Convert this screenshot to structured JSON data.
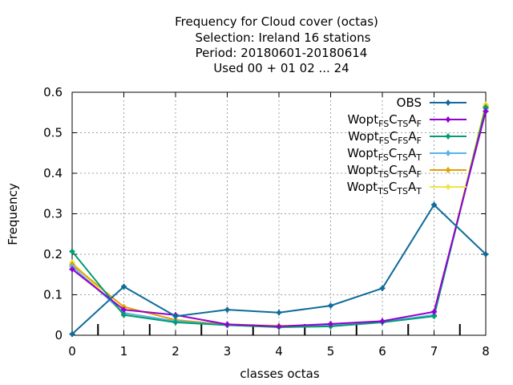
{
  "chart_data": {
    "type": "line",
    "title_lines": [
      "Frequency  for Cloud cover (octas)",
      "Selection: Ireland     16 stations",
      "Period: 20180601-20180614",
      "Used  00 + 01 02 ... 24"
    ],
    "xlabel": "classes octas",
    "ylabel": "Frequency",
    "x": [
      0,
      1,
      2,
      3,
      4,
      5,
      6,
      7,
      8
    ],
    "xlim": [
      0,
      8
    ],
    "ylim": [
      0,
      0.6
    ],
    "xticks": [
      "0",
      "1",
      "2",
      "3",
      "4",
      "5",
      "6",
      "7",
      "8"
    ],
    "yticks": [
      "0",
      "0.1",
      "0.2",
      "0.3",
      "0.4",
      "0.5",
      "0.6"
    ],
    "grid": true,
    "legend_position": "top-right",
    "series": [
      {
        "name": "OBS",
        "legend": {
          "base": "OBS",
          "parts": []
        },
        "color": "#0e6b9b",
        "values": [
          0.003,
          0.12,
          0.047,
          0.063,
          0.056,
          0.073,
          0.116,
          0.322,
          0.2
        ]
      },
      {
        "name": "Wopt FS CTS AF",
        "legend": {
          "base": "Wopt",
          "parts": [
            [
              "FS",
              "C"
            ],
            [
              "TS",
              "A"
            ],
            [
              "F",
              ""
            ]
          ]
        },
        "color": "#9400d3",
        "values": [
          0.163,
          0.063,
          0.05,
          0.027,
          0.022,
          0.028,
          0.035,
          0.058,
          0.553
        ]
      },
      {
        "name": "Wopt FS CFS AF",
        "legend": {
          "base": "Wopt",
          "parts": [
            [
              "FS",
              "C"
            ],
            [
              "FS",
              "A"
            ],
            [
              "F",
              ""
            ]
          ]
        },
        "color": "#009e73",
        "values": [
          0.207,
          0.05,
          0.032,
          0.025,
          0.02,
          0.022,
          0.032,
          0.047,
          0.562
        ]
      },
      {
        "name": "Wopt FS CTS AT",
        "legend": {
          "base": "Wopt",
          "parts": [
            [
              "FS",
              "C"
            ],
            [
              "TS",
              "A"
            ],
            [
              "T",
              ""
            ]
          ]
        },
        "color": "#56b4e9",
        "values": [
          0.17,
          0.055,
          0.035,
          0.025,
          0.022,
          0.024,
          0.033,
          0.05,
          0.56
        ]
      },
      {
        "name": "Wopt TS CTS AF",
        "legend": {
          "base": "Wopt",
          "parts": [
            [
              "TS",
              "C"
            ],
            [
              "TS",
              "A"
            ],
            [
              "F",
              ""
            ]
          ]
        },
        "color": "#e69f00",
        "values": [
          0.175,
          0.07,
          0.038,
          0.026,
          0.02,
          0.022,
          0.034,
          0.048,
          0.565
        ]
      },
      {
        "name": "Wopt TS CTS AT",
        "legend": {
          "base": "Wopt",
          "parts": [
            [
              "TS",
              "C"
            ],
            [
              "TS",
              "A"
            ],
            [
              "T",
              ""
            ]
          ]
        },
        "color": "#f0e442",
        "values": [
          0.18,
          0.052,
          0.036,
          0.027,
          0.024,
          0.023,
          0.034,
          0.049,
          0.57
        ]
      }
    ]
  }
}
